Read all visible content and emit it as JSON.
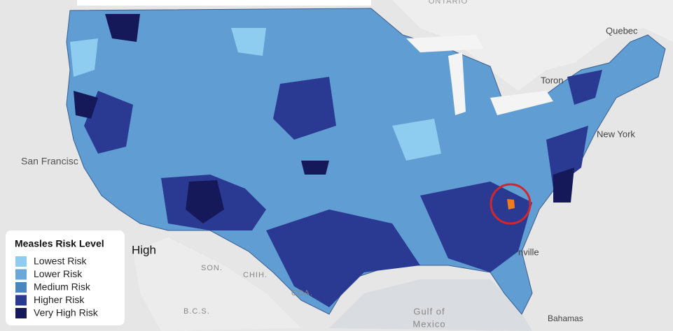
{
  "map": {
    "labels": [
      "ONTARIO",
      "Quebec",
      "Toron",
      "New York",
      "San Francisc",
      "SON.",
      "CHIH.",
      "COA.",
      "B.C.S.",
      "Gulf of",
      "Mexico",
      "nville",
      "Bahamas"
    ]
  },
  "annotation": "High",
  "legend": {
    "title": "Measles Risk Level",
    "items": [
      {
        "label": "Lowest Risk",
        "color": "#8ecdf0"
      },
      {
        "label": "Lower Risk",
        "color": "#6aa8d9"
      },
      {
        "label": "Medium Risk",
        "color": "#4a85bd"
      },
      {
        "label": "Higher Risk",
        "color": "#2a3a92"
      },
      {
        "label": "Very High Risk",
        "color": "#15195a"
      }
    ]
  }
}
